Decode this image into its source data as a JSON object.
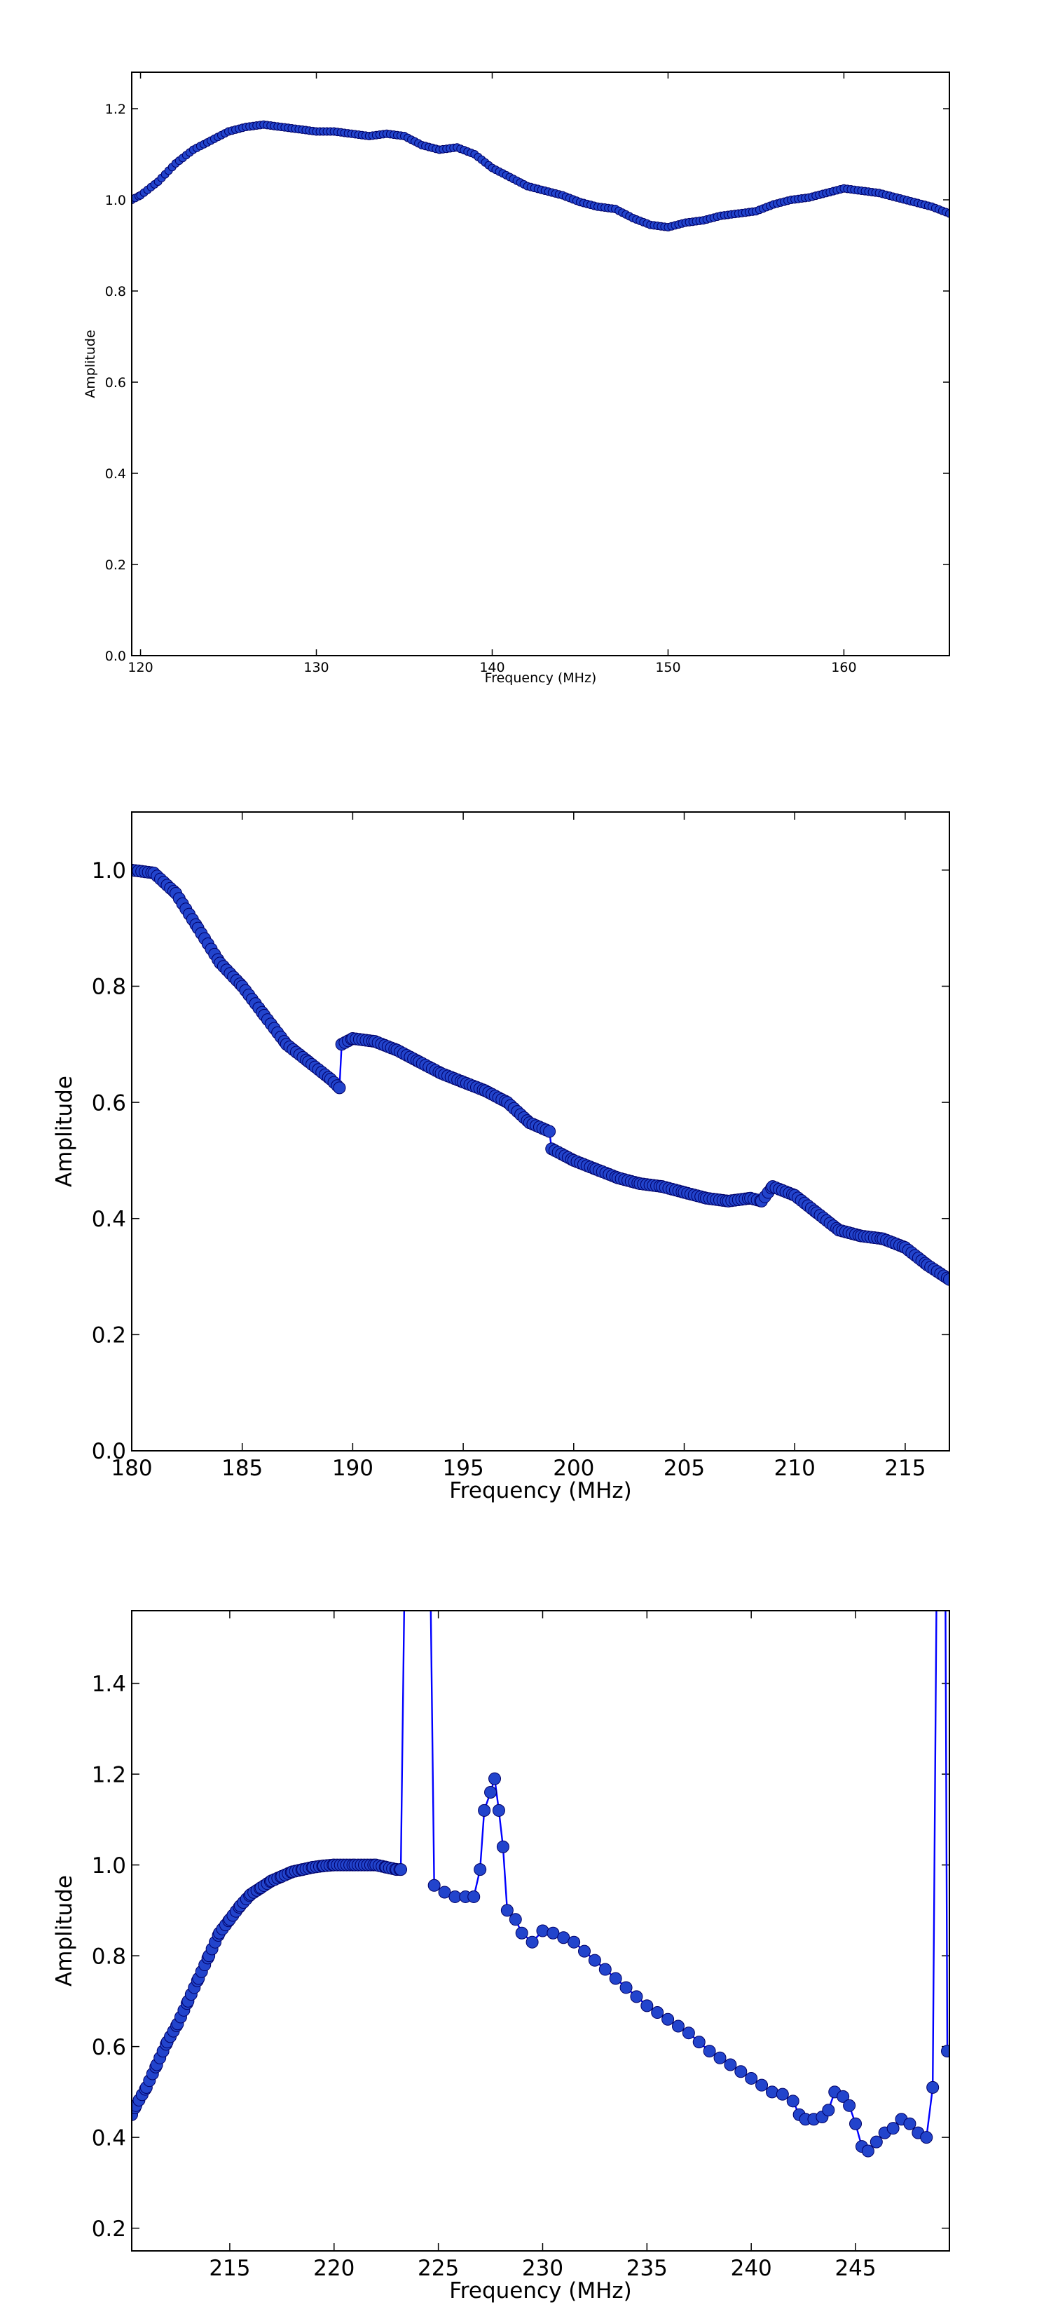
{
  "chart_data": [
    {
      "type": "line",
      "xlabel": "Frequency (MHz)",
      "ylabel": "Amplitude",
      "xlim": [
        119.5,
        166
      ],
      "ylim": [
        0,
        1.28
      ],
      "xticks": [
        "120",
        "130",
        "140",
        "150",
        "160"
      ],
      "yticks": [
        "0.0",
        "0.2",
        "0.4",
        "0.6",
        "0.8",
        "1.0",
        "1.2"
      ],
      "marker": "circle",
      "color": "#0000ff",
      "anchors": [
        [
          119.5,
          1.0
        ],
        [
          120,
          1.01
        ],
        [
          121,
          1.04
        ],
        [
          122,
          1.08
        ],
        [
          123,
          1.11
        ],
        [
          124,
          1.13
        ],
        [
          125,
          1.15
        ],
        [
          126,
          1.16
        ],
        [
          127,
          1.165
        ],
        [
          128,
          1.16
        ],
        [
          129,
          1.155
        ],
        [
          130,
          1.15
        ],
        [
          131,
          1.15
        ],
        [
          132,
          1.145
        ],
        [
          133,
          1.14
        ],
        [
          134,
          1.145
        ],
        [
          135,
          1.14
        ],
        [
          136,
          1.12
        ],
        [
          137,
          1.11
        ],
        [
          138,
          1.115
        ],
        [
          139,
          1.1
        ],
        [
          140,
          1.07
        ],
        [
          141,
          1.05
        ],
        [
          142,
          1.03
        ],
        [
          143,
          1.02
        ],
        [
          144,
          1.01
        ],
        [
          145,
          0.995
        ],
        [
          146,
          0.985
        ],
        [
          147,
          0.98
        ],
        [
          148,
          0.96
        ],
        [
          149,
          0.945
        ],
        [
          150,
          0.94
        ],
        [
          151,
          0.95
        ],
        [
          152,
          0.955
        ],
        [
          153,
          0.965
        ],
        [
          154,
          0.97
        ],
        [
          155,
          0.975
        ],
        [
          156,
          0.99
        ],
        [
          157,
          1.0
        ],
        [
          158,
          1.005
        ],
        [
          159,
          1.015
        ],
        [
          160,
          1.025
        ],
        [
          161,
          1.02
        ],
        [
          162,
          1.015
        ],
        [
          163,
          1.005
        ],
        [
          164,
          0.995
        ],
        [
          165,
          0.985
        ],
        [
          166,
          0.97
        ]
      ],
      "step": 0.2
    },
    {
      "type": "line",
      "xlabel": "Frequency (MHz)",
      "ylabel": "Amplitude",
      "xlim": [
        180,
        217
      ],
      "ylim": [
        0,
        1.1
      ],
      "xticks": [
        "180",
        "185",
        "190",
        "195",
        "200",
        "205",
        "210",
        "215"
      ],
      "yticks": [
        "0.0",
        "0.2",
        "0.4",
        "0.6",
        "0.8",
        "1.0"
      ],
      "marker": "circle",
      "color": "#0000ff",
      "anchors": [
        [
          180,
          1.0
        ],
        [
          181,
          0.995
        ],
        [
          182,
          0.96
        ],
        [
          183,
          0.9
        ],
        [
          184,
          0.84
        ],
        [
          185,
          0.8
        ],
        [
          186,
          0.75
        ],
        [
          187,
          0.7
        ],
        [
          188,
          0.67
        ],
        [
          189,
          0.64
        ],
        [
          189.4,
          0.625
        ],
        [
          189.5,
          0.7
        ],
        [
          190,
          0.71
        ],
        [
          191,
          0.705
        ],
        [
          192,
          0.69
        ],
        [
          193,
          0.67
        ],
        [
          194,
          0.65
        ],
        [
          195,
          0.635
        ],
        [
          196,
          0.62
        ],
        [
          197,
          0.6
        ],
        [
          198,
          0.565
        ],
        [
          198.9,
          0.55
        ],
        [
          199,
          0.52
        ],
        [
          200,
          0.5
        ],
        [
          201,
          0.485
        ],
        [
          202,
          0.47
        ],
        [
          203,
          0.46
        ],
        [
          204,
          0.455
        ],
        [
          205,
          0.445
        ],
        [
          206,
          0.435
        ],
        [
          207,
          0.43
        ],
        [
          208,
          0.435
        ],
        [
          208.5,
          0.43
        ],
        [
          209,
          0.455
        ],
        [
          210,
          0.44
        ],
        [
          211,
          0.41
        ],
        [
          212,
          0.38
        ],
        [
          213,
          0.37
        ],
        [
          214,
          0.365
        ],
        [
          215,
          0.35
        ],
        [
          216,
          0.32
        ],
        [
          217,
          0.295
        ]
      ],
      "step": 0.15
    },
    {
      "type": "line",
      "xlabel": "Frequency (MHz)",
      "ylabel": "Amplitude",
      "xlim": [
        210.3,
        249.5
      ],
      "ylim": [
        0.15,
        1.56
      ],
      "xticks": [
        "215",
        "220",
        "225",
        "230",
        "235",
        "240",
        "245"
      ],
      "yticks": [
        "0.2",
        "0.4",
        "0.6",
        "0.8",
        "1.0",
        "1.2",
        "1.4"
      ],
      "marker": "circle",
      "color": "#0000ff",
      "points": [
        [
          210.3,
          0.45
        ],
        [
          210.5,
          0.47
        ],
        [
          211,
          0.51
        ],
        [
          211.5,
          0.56
        ],
        [
          212,
          0.61
        ],
        [
          212.5,
          0.65
        ],
        [
          213,
          0.7
        ],
        [
          213.5,
          0.75
        ],
        [
          214,
          0.8
        ],
        [
          214.5,
          0.85
        ],
        [
          215,
          0.88
        ],
        [
          215.5,
          0.91
        ],
        [
          216,
          0.935
        ],
        [
          216.5,
          0.95
        ],
        [
          217,
          0.965
        ],
        [
          217.5,
          0.975
        ],
        [
          218,
          0.985
        ],
        [
          218.5,
          0.99
        ],
        [
          219,
          0.995
        ],
        [
          219.5,
          0.998
        ],
        [
          220,
          1.0
        ],
        [
          220.5,
          1.0
        ],
        [
          221,
          1.0
        ],
        [
          221.5,
          1.0
        ],
        [
          222,
          1.0
        ],
        [
          222.5,
          0.995
        ],
        [
          223,
          0.99
        ],
        [
          223.2,
          0.99
        ],
        [
          223.4,
          1.7
        ],
        [
          224.6,
          1.7
        ],
        [
          224.8,
          0.955
        ],
        [
          225.3,
          0.94
        ],
        [
          225.8,
          0.93
        ],
        [
          226.3,
          0.93
        ],
        [
          226.7,
          0.93
        ],
        [
          227,
          0.99
        ],
        [
          227.2,
          1.12
        ],
        [
          227.5,
          1.16
        ],
        [
          227.7,
          1.19
        ],
        [
          227.9,
          1.12
        ],
        [
          228.1,
          1.04
        ],
        [
          228.3,
          0.9
        ],
        [
          228.7,
          0.88
        ],
        [
          229,
          0.85
        ],
        [
          229.5,
          0.83
        ],
        [
          230,
          0.855
        ],
        [
          230.5,
          0.85
        ],
        [
          231,
          0.84
        ],
        [
          231.5,
          0.83
        ],
        [
          232,
          0.81
        ],
        [
          232.5,
          0.79
        ],
        [
          233,
          0.77
        ],
        [
          233.5,
          0.75
        ],
        [
          234,
          0.73
        ],
        [
          234.5,
          0.71
        ],
        [
          235,
          0.69
        ],
        [
          235.5,
          0.675
        ],
        [
          236,
          0.66
        ],
        [
          236.5,
          0.645
        ],
        [
          237,
          0.63
        ],
        [
          237.5,
          0.61
        ],
        [
          238,
          0.59
        ],
        [
          238.5,
          0.575
        ],
        [
          239,
          0.56
        ],
        [
          239.5,
          0.545
        ],
        [
          240,
          0.53
        ],
        [
          240.5,
          0.515
        ],
        [
          241,
          0.5
        ],
        [
          241.5,
          0.495
        ],
        [
          242,
          0.48
        ],
        [
          242.3,
          0.45
        ],
        [
          242.6,
          0.44
        ],
        [
          243,
          0.44
        ],
        [
          243.4,
          0.445
        ],
        [
          243.7,
          0.46
        ],
        [
          244,
          0.5
        ],
        [
          244.4,
          0.49
        ],
        [
          244.7,
          0.47
        ],
        [
          245,
          0.43
        ],
        [
          245.3,
          0.38
        ],
        [
          245.6,
          0.37
        ],
        [
          246,
          0.39
        ],
        [
          246.4,
          0.41
        ],
        [
          246.8,
          0.42
        ],
        [
          247.2,
          0.44
        ],
        [
          247.6,
          0.43
        ],
        [
          248,
          0.41
        ],
        [
          248.4,
          0.4
        ],
        [
          248.7,
          0.51
        ],
        [
          248.9,
          1.7
        ],
        [
          249.3,
          1.7
        ],
        [
          249.4,
          0.59
        ]
      ],
      "curve": [
        [
          210.3,
          0.45
        ],
        [
          210.5,
          0.47
        ],
        [
          211,
          0.51
        ],
        [
          211.5,
          0.56
        ],
        [
          212,
          0.61
        ],
        [
          212.5,
          0.65
        ],
        [
          213,
          0.7
        ],
        [
          213.5,
          0.75
        ],
        [
          214,
          0.8
        ],
        [
          214.5,
          0.85
        ],
        [
          215,
          0.88
        ],
        [
          215.5,
          0.91
        ],
        [
          216,
          0.935
        ],
        [
          216.5,
          0.95
        ],
        [
          217,
          0.965
        ],
        [
          217.5,
          0.975
        ],
        [
          218,
          0.985
        ],
        [
          218.5,
          0.99
        ],
        [
          219,
          0.995
        ],
        [
          219.5,
          0.998
        ],
        [
          220,
          1.0
        ],
        [
          221,
          1.0
        ],
        [
          222,
          1.0
        ],
        [
          222.5,
          0.995
        ],
        [
          223,
          0.99
        ],
        [
          223.2,
          0.99
        ]
      ],
      "step": 0.15
    }
  ]
}
